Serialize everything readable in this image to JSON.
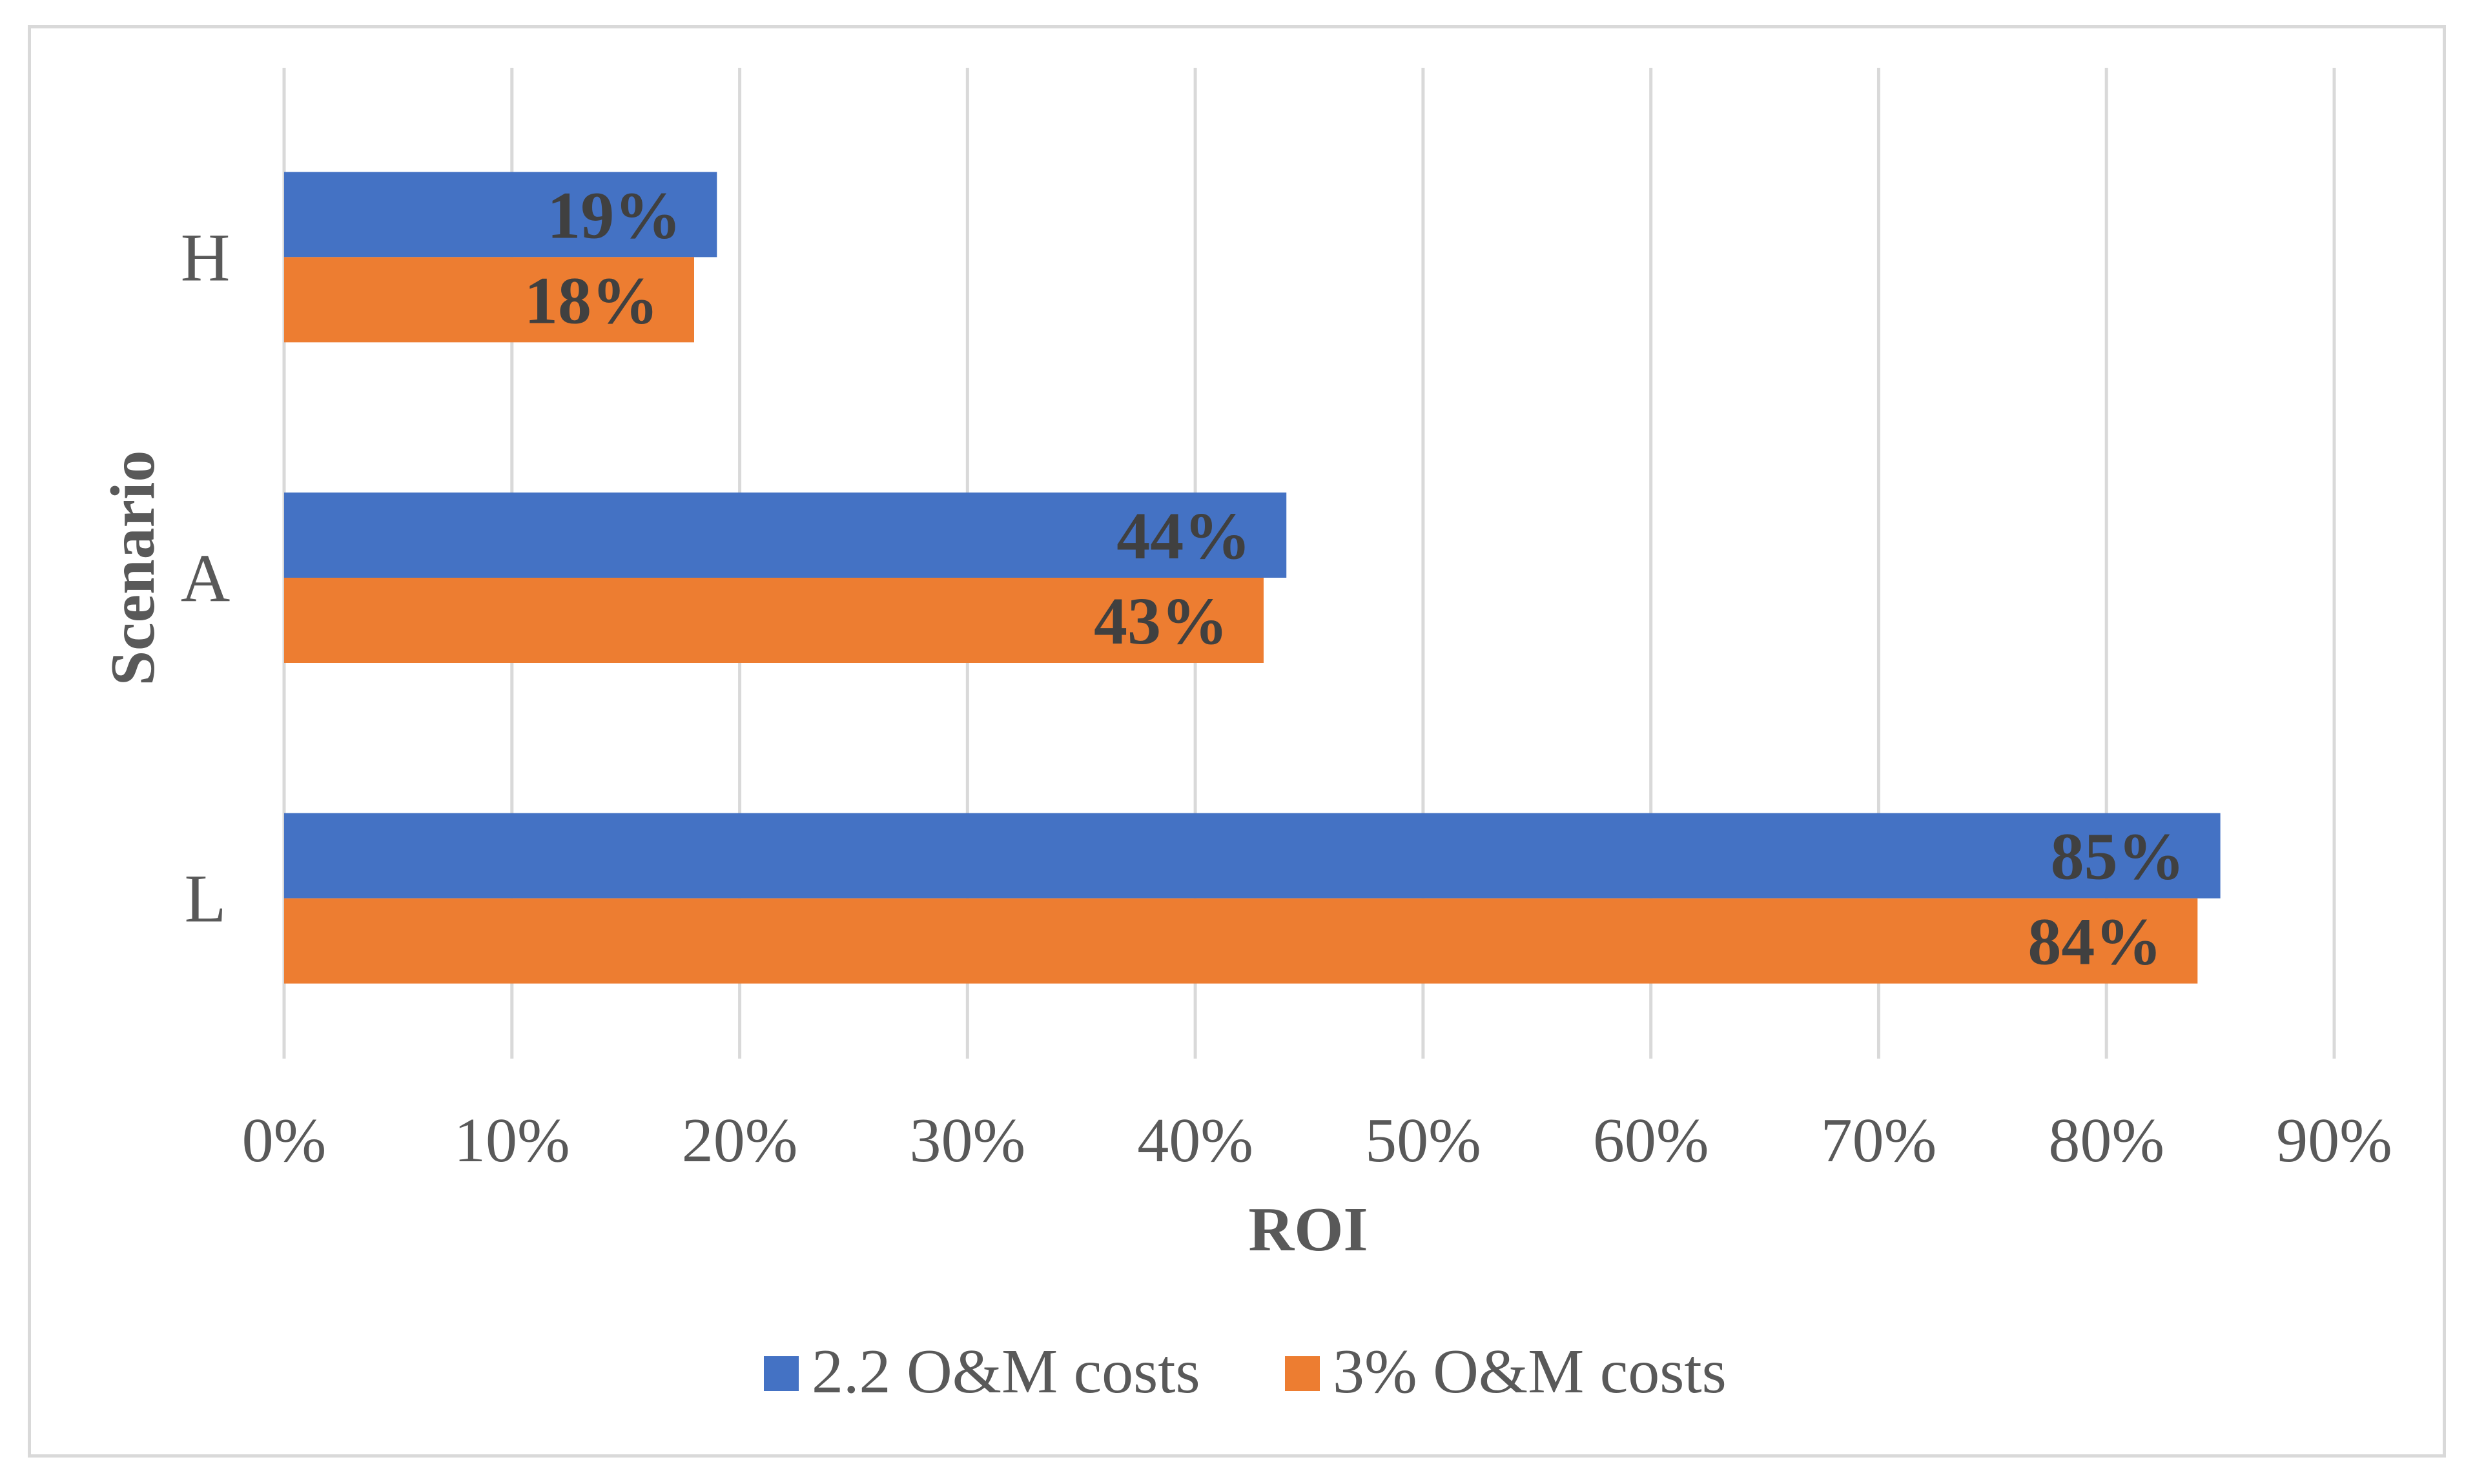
{
  "chart_data": {
    "type": "bar",
    "orientation": "horizontal",
    "title": "",
    "xlabel": "ROI",
    "ylabel": "Scenario",
    "categories": [
      "L",
      "A",
      "H"
    ],
    "series": [
      {
        "name": "2.2 O&M costs",
        "color": "#4472c4",
        "values": [
          85,
          44,
          19
        ],
        "labels": [
          "85%",
          "44%",
          "19%"
        ]
      },
      {
        "name": "3% O&M costs",
        "color": "#ed7d31",
        "values": [
          84,
          43,
          18
        ],
        "labels": [
          "84%",
          "43%",
          "18%"
        ]
      }
    ],
    "xlim": [
      0,
      90
    ],
    "xticks": [
      "0%",
      "10%",
      "20%",
      "30%",
      "40%",
      "50%",
      "60%",
      "70%",
      "80%",
      "90%"
    ],
    "grid": "vertical",
    "legend": "bottom",
    "gridColor": "#d9d9d9"
  }
}
